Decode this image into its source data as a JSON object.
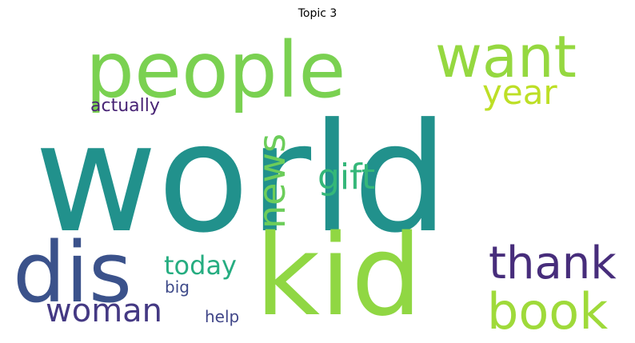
{
  "title": "Topic 3",
  "words": [
    {
      "key": "world",
      "text": "world",
      "color": "#21918c",
      "weight": 1.0
    },
    {
      "key": "kid",
      "text": "kid",
      "color": "#90d743",
      "weight": 0.62
    },
    {
      "key": "people",
      "text": "people",
      "color": "#7ad151",
      "weight": 0.48
    },
    {
      "key": "dis",
      "text": "dis",
      "color": "#3b528b",
      "weight": 0.42
    },
    {
      "key": "want",
      "text": "want",
      "color": "#95d840",
      "weight": 0.36
    },
    {
      "key": "book",
      "text": "book",
      "color": "#9fda3a",
      "weight": 0.32
    },
    {
      "key": "thank",
      "text": "thank",
      "color": "#472d7b",
      "weight": 0.28
    },
    {
      "key": "woman",
      "text": "woman",
      "color": "#443983",
      "weight": 0.24
    },
    {
      "key": "gift",
      "text": "gift",
      "color": "#35b779",
      "weight": 0.23
    },
    {
      "key": "news",
      "text": "news",
      "color": "#6ccd5a",
      "weight": 0.22
    },
    {
      "key": "year",
      "text": "year",
      "color": "#bddf26",
      "weight": 0.2
    },
    {
      "key": "today",
      "text": "today",
      "color": "#26ad81",
      "weight": 0.17
    },
    {
      "key": "actually",
      "text": "actually",
      "color": "#482475",
      "weight": 0.11
    },
    {
      "key": "help",
      "text": "help",
      "color": "#404688",
      "weight": 0.1
    },
    {
      "key": "big",
      "text": "big",
      "color": "#3e4a89",
      "weight": 0.09
    }
  ]
}
